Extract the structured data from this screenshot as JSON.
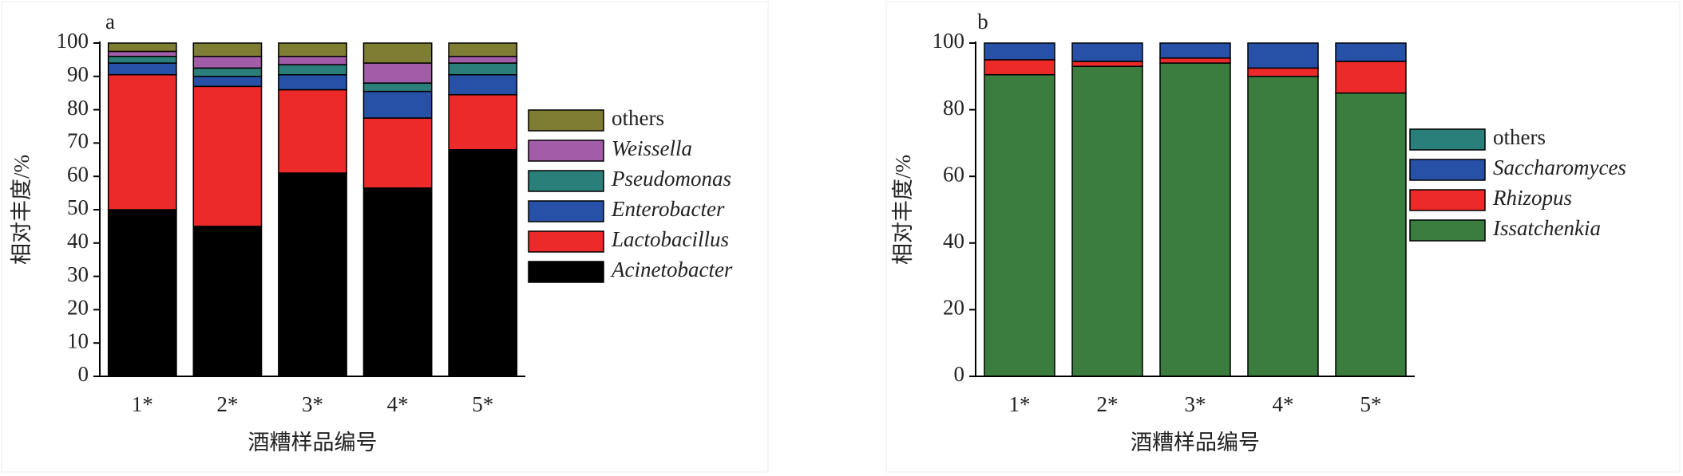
{
  "chart_data": [
    {
      "type": "stacked-bar",
      "panel": "a",
      "ylabel": "相对丰度/%",
      "xlabel": "酒糟样品编号",
      "categories": [
        "1*",
        "2*",
        "3*",
        "4*",
        "5*"
      ],
      "ylim": [
        0,
        100
      ],
      "yticks": [
        0,
        10,
        20,
        30,
        40,
        50,
        60,
        70,
        80,
        90,
        100
      ],
      "series": [
        {
          "name": "Acinetobacter",
          "color": "#000000",
          "values": [
            50,
            45,
            61,
            56.5,
            68
          ]
        },
        {
          "name": "Lactobacillus",
          "color": "#ec2a2a",
          "values": [
            40.5,
            42,
            25,
            21,
            16.5
          ]
        },
        {
          "name": "Enterobacter",
          "color": "#2651a6",
          "values": [
            3.5,
            3,
            4.5,
            8,
            6
          ]
        },
        {
          "name": "Pseudomonas",
          "color": "#2b7f7a",
          "values": [
            2,
            2.5,
            3,
            2.5,
            3.5
          ]
        },
        {
          "name": "Weissella",
          "color": "#a25ca8",
          "values": [
            1.5,
            3.5,
            2.5,
            6,
            2
          ]
        },
        {
          "name": "others",
          "color": "#7f7c33",
          "values": [
            2.5,
            4,
            4,
            6,
            4
          ]
        }
      ]
    },
    {
      "type": "stacked-bar",
      "panel": "b",
      "ylabel": "相对丰度/%",
      "xlabel": "酒糟样品编号",
      "categories": [
        "1*",
        "2*",
        "3*",
        "4*",
        "5*"
      ],
      "ylim": [
        0,
        100
      ],
      "yticks": [
        0,
        20,
        40,
        60,
        80,
        100
      ],
      "series": [
        {
          "name": "Issatchenkia",
          "color": "#3b7d3f",
          "values": [
            90.5,
            93,
            94,
            90,
            85
          ]
        },
        {
          "name": "Rhizopus",
          "color": "#ec2a2a",
          "values": [
            4.5,
            1.5,
            1.5,
            2.5,
            9.5
          ]
        },
        {
          "name": "Saccharomyces",
          "color": "#2651a6",
          "values": [
            5,
            5.5,
            4.5,
            7.5,
            5.5
          ]
        },
        {
          "name": "others",
          "color": "#2b7f7a",
          "values": [
            0,
            0,
            0,
            0,
            0
          ]
        }
      ]
    }
  ]
}
